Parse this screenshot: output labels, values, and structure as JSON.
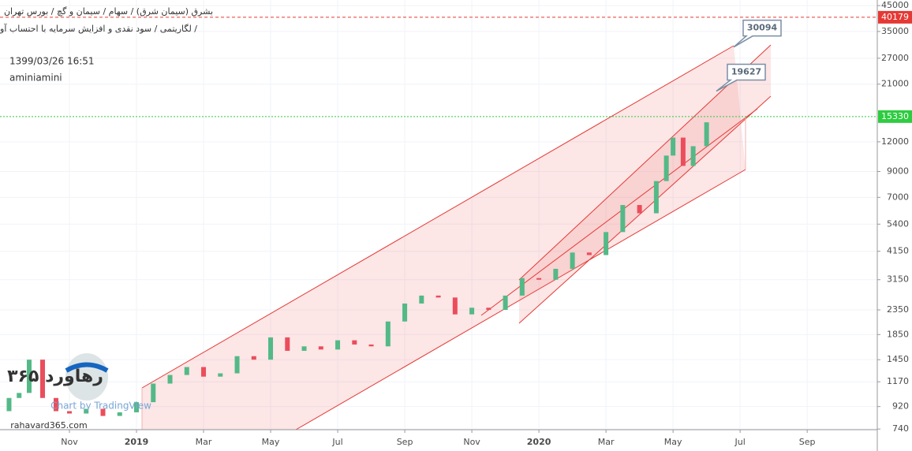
{
  "chart_data": {
    "type": "candlestick",
    "title": "بشرق (سیمان شرق) / سهام / سیمان و گچ / بورس تهران",
    "subtitle": "لگاریتمی / سود نقدی و افزایش سرمایه با احتساب آورده /",
    "timestamp": "1399/03/26 16:51",
    "author": "aminiamini",
    "x": [
      -1.8,
      -1.5,
      -1.2,
      -0.8,
      -0.4,
      0,
      0.5,
      1,
      1.5,
      2,
      2.5,
      3,
      3.5,
      4,
      4.5,
      5,
      5.5,
      6,
      6.5,
      7,
      7.5,
      8,
      8.5,
      9,
      9.5,
      10,
      10.5,
      11,
      11.5,
      12,
      12.5,
      13,
      13.5,
      14,
      14.5,
      15,
      15.5,
      16,
      16.5,
      17,
      17.5,
      17.8,
      18,
      18.3,
      18.6,
      19
    ],
    "opens": [
      880,
      1000,
      1050,
      1450,
      1000,
      880,
      860,
      900,
      840,
      870,
      960,
      1150,
      1250,
      1350,
      1230,
      1270,
      1500,
      1450,
      1800,
      1580,
      1650,
      1600,
      1750,
      1680,
      1650,
      2100,
      2500,
      2700,
      2650,
      2250,
      2400,
      2350,
      2700,
      3200,
      3150,
      3500,
      4100,
      4000,
      5000,
      6500,
      6000,
      8200,
      10500,
      12500,
      9500,
      11500
    ],
    "closes": [
      1000,
      1050,
      1450,
      1000,
      880,
      860,
      900,
      840,
      870,
      960,
      1150,
      1250,
      1350,
      1230,
      1270,
      1500,
      1450,
      1800,
      1580,
      1650,
      1600,
      1750,
      1680,
      1650,
      2100,
      2500,
      2700,
      2650,
      2250,
      2400,
      2350,
      2700,
      3200,
      3150,
      3500,
      4100,
      4000,
      5000,
      6500,
      6000,
      8200,
      10500,
      12500,
      9500,
      11500,
      14500
    ],
    "up_color": "#53b987",
    "down_color": "#eb4d5c",
    "log_scale": true,
    "grid": true,
    "xlim": [
      -2.07,
      24.09
    ],
    "xticks": [
      {
        "value": 0,
        "label": "Nov"
      },
      {
        "value": 2,
        "label": "2019"
      },
      {
        "value": 4,
        "label": "Mar"
      },
      {
        "value": 6,
        "label": "May"
      },
      {
        "value": 8,
        "label": "Jul"
      },
      {
        "value": 10,
        "label": "Sep"
      },
      {
        "value": 12,
        "label": "Nov"
      },
      {
        "value": 14,
        "label": "2020"
      },
      {
        "value": 16,
        "label": "Mar"
      },
      {
        "value": 18,
        "label": "May"
      },
      {
        "value": 20,
        "label": "Jul"
      },
      {
        "value": 22,
        "label": "Sep"
      }
    ],
    "ylim": [
      735,
      47500
    ],
    "yticks": [
      45000,
      35000,
      27000,
      21000,
      12000,
      9000,
      7000,
      5400,
      4150,
      3150,
      2350,
      1850,
      1450,
      1170,
      920,
      740
    ],
    "price_lines": [
      {
        "value": 40179,
        "color": "#e53935"
      },
      {
        "value": 15330,
        "color": "#2ecc40"
      }
    ],
    "callouts": [
      30094,
      19627
    ],
    "watermark": {
      "brand": "رهاورد ۳۶۵",
      "site": "rahavard365.com",
      "credit": "Chart by TradingView"
    }
  }
}
